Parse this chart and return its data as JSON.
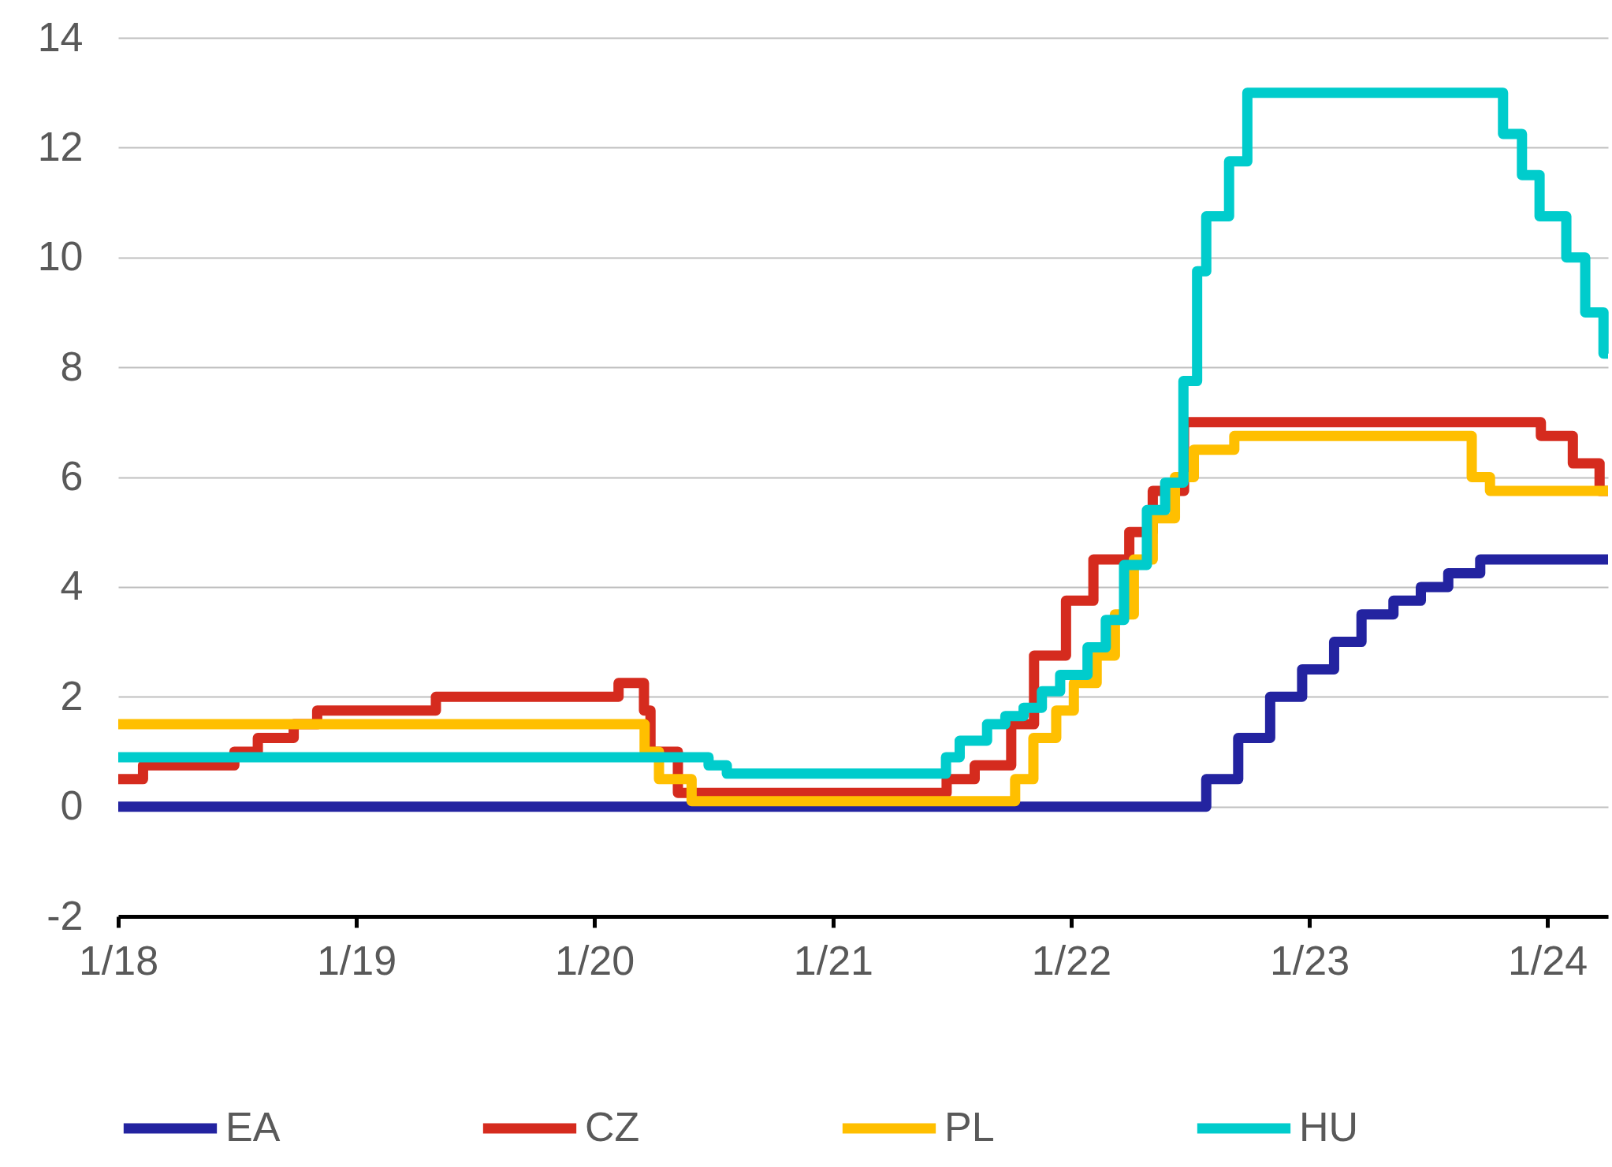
{
  "chart_data": {
    "type": "step",
    "xlim": [
      "2018-01-01",
      "2024-04-03"
    ],
    "xticks": [
      {
        "value": "2018-01-01",
        "label": "1/18"
      },
      {
        "value": "2019-01-01",
        "label": "1/19"
      },
      {
        "value": "2020-01-01",
        "label": "1/20"
      },
      {
        "value": "2021-01-01",
        "label": "1/21"
      },
      {
        "value": "2022-01-01",
        "label": "1/22"
      },
      {
        "value": "2023-01-01",
        "label": "1/23"
      },
      {
        "value": "2024-01-01",
        "label": "1/24"
      }
    ],
    "ylim": [
      -2,
      14
    ],
    "yticks": [
      -2,
      0,
      2,
      4,
      6,
      8,
      10,
      12,
      14
    ],
    "grid": "y",
    "legend": "bottom",
    "line_style": "solid",
    "marker": "none",
    "series": [
      {
        "name": "EA",
        "color": "#2323a0",
        "x": [
          "2018-01-01",
          "2022-07-27",
          "2022-09-14",
          "2022-11-02",
          "2022-12-21",
          "2023-02-08",
          "2023-03-22",
          "2023-05-10",
          "2023-06-21",
          "2023-08-02",
          "2023-09-20",
          "2024-04-03"
        ],
        "values": [
          0,
          0.5,
          1.25,
          2.0,
          2.5,
          3.0,
          3.5,
          3.75,
          4.0,
          4.25,
          4.5,
          4.5
        ]
      },
      {
        "name": "CZ",
        "color": "#d52b1e",
        "x": [
          "2018-01-01",
          "2018-02-08",
          "2018-06-28",
          "2018-08-03",
          "2018-09-27",
          "2018-11-02",
          "2019-05-03",
          "2020-02-07",
          "2020-03-17",
          "2020-03-27",
          "2020-05-08",
          "2021-06-24",
          "2021-08-06",
          "2021-10-01",
          "2021-11-05",
          "2021-12-24",
          "2022-02-04",
          "2022-03-31",
          "2022-05-06",
          "2022-06-23",
          "2023-12-22",
          "2024-02-09",
          "2024-03-21",
          "2024-04-03"
        ],
        "values": [
          0.5,
          0.75,
          1.0,
          1.25,
          1.5,
          1.75,
          2.0,
          2.25,
          1.75,
          1.0,
          0.25,
          0.5,
          0.75,
          1.5,
          2.75,
          3.75,
          4.5,
          5.0,
          5.75,
          7.0,
          6.75,
          6.25,
          5.75,
          5.75
        ]
      },
      {
        "name": "PL",
        "color": "#ffbf00",
        "x": [
          "2018-01-01",
          "2020-03-18",
          "2020-04-09",
          "2020-05-29",
          "2021-10-07",
          "2021-11-04",
          "2021-12-09",
          "2022-01-05",
          "2022-02-09",
          "2022-03-09",
          "2022-04-07",
          "2022-05-06",
          "2022-06-09",
          "2022-07-08",
          "2022-09-08",
          "2023-09-07",
          "2023-10-05",
          "2024-04-03"
        ],
        "values": [
          1.5,
          1.0,
          0.5,
          0.1,
          0.5,
          1.25,
          1.75,
          2.25,
          2.75,
          3.5,
          4.5,
          5.25,
          6.0,
          6.5,
          6.75,
          6.0,
          5.75,
          5.75
        ]
      },
      {
        "name": "HU",
        "color": "#00cccc",
        "x": [
          "2018-01-01",
          "2020-06-24",
          "2020-07-22",
          "2021-06-23",
          "2021-07-14",
          "2021-08-25",
          "2021-09-22",
          "2021-10-20",
          "2021-11-17",
          "2021-12-15",
          "2022-01-26",
          "2022-02-23",
          "2022-03-23",
          "2022-04-27",
          "2022-05-25",
          "2022-06-22",
          "2022-07-13",
          "2022-07-27",
          "2022-08-31",
          "2022-09-28",
          "2023-10-25",
          "2023-11-23",
          "2023-12-20",
          "2024-01-30",
          "2024-02-28",
          "2024-03-27",
          "2024-04-03"
        ],
        "values": [
          0.9,
          0.75,
          0.6,
          0.9,
          1.2,
          1.5,
          1.65,
          1.8,
          2.1,
          2.4,
          2.9,
          3.4,
          4.4,
          5.4,
          5.9,
          7.75,
          9.75,
          10.75,
          11.75,
          13.0,
          12.25,
          11.5,
          10.75,
          10.0,
          9.0,
          8.25,
          8.25
        ]
      }
    ]
  }
}
